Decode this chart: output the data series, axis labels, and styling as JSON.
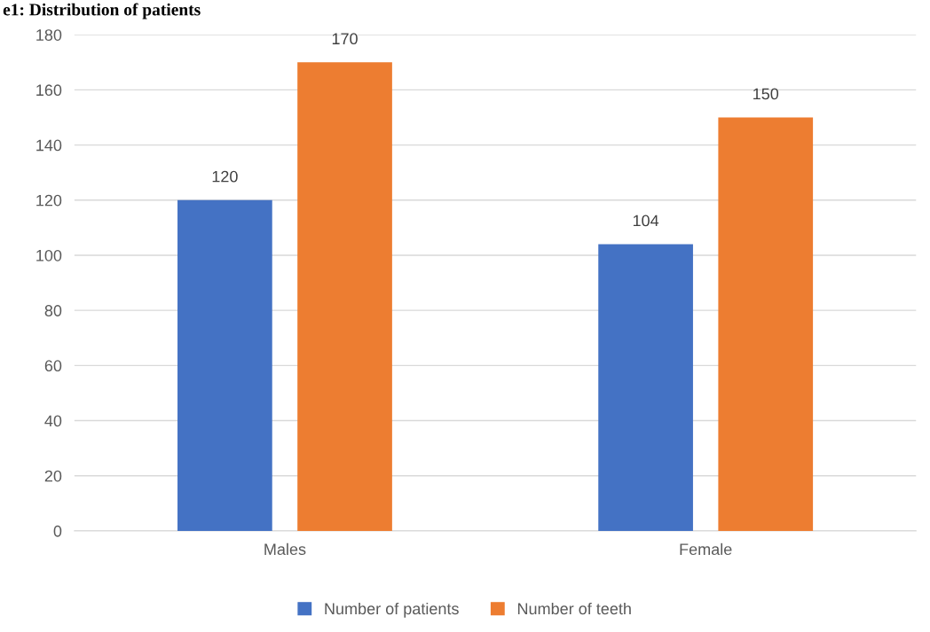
{
  "chart_data": {
    "type": "bar",
    "title": "e1: Distribution of patients",
    "categories": [
      "Males",
      "Female"
    ],
    "series": [
      {
        "name": "Number of patients",
        "color": "#4472c4",
        "values": [
          120,
          104
        ]
      },
      {
        "name": "Number of teeth",
        "color": "#ed7d31",
        "values": [
          170,
          150
        ]
      }
    ],
    "ylim": [
      0,
      180
    ],
    "yticks": [
      0,
      20,
      40,
      60,
      80,
      100,
      120,
      140,
      160,
      180
    ],
    "grid": "y",
    "legend": "bottom",
    "data_labels": true
  }
}
